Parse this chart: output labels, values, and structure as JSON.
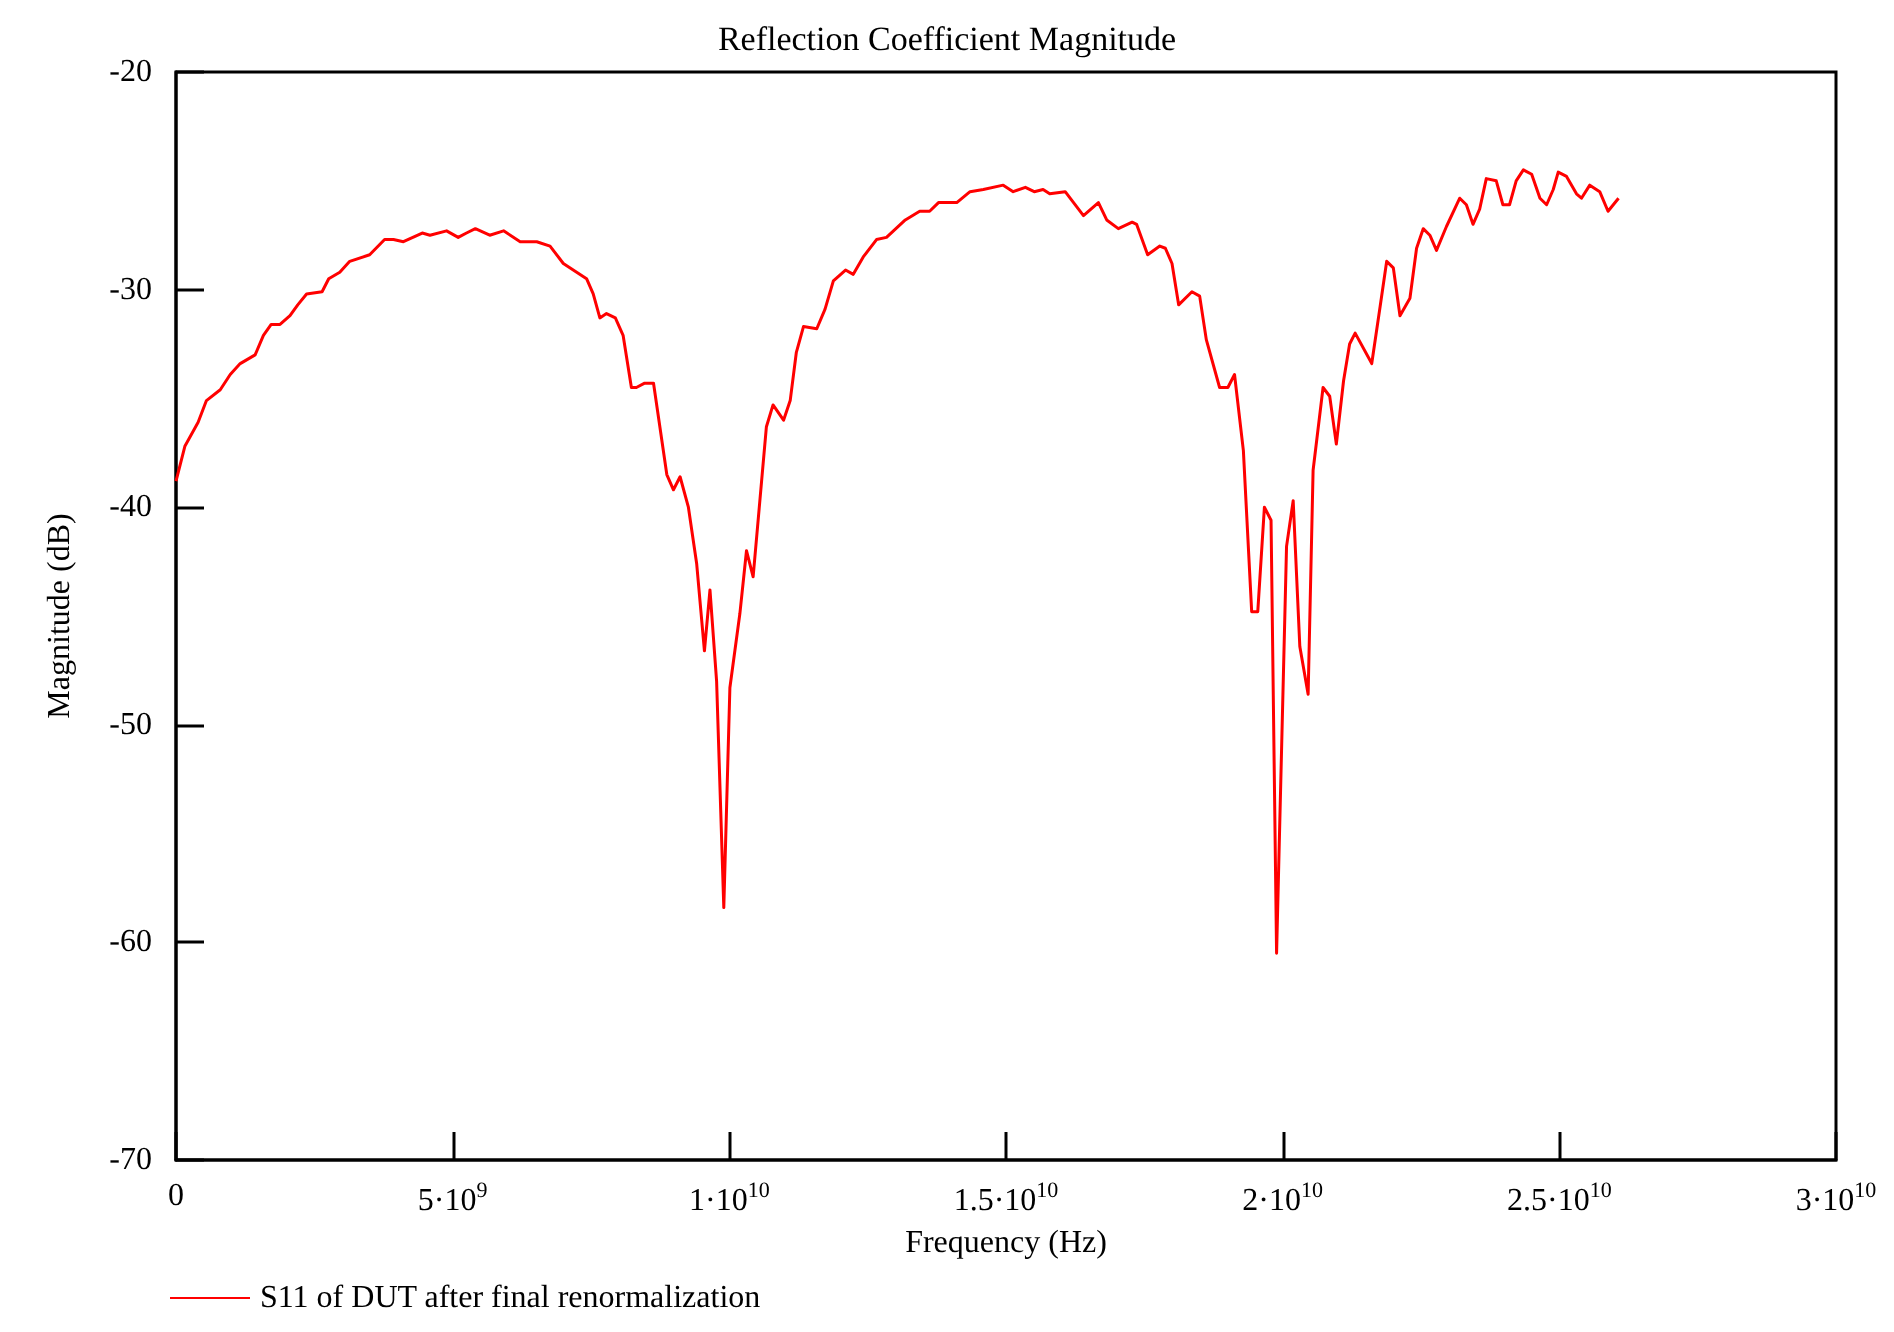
{
  "chart_data": {
    "type": "line",
    "title": "Reflection Coefficient Magnitude",
    "xlabel": "Frequency (Hz)",
    "ylabel": "Magnitude (dB)",
    "xlim": [
      0,
      30000000000.0
    ],
    "xticks": [
      0,
      {
        "value": 5000000000.0,
        "label": "5·10$^{9}$"
      },
      {
        "value": 10000000000.0,
        "label": "1·10$^{10}$"
      },
      {
        "value": 15000000000.0,
        "label": "1.5·10$^{10}$"
      },
      {
        "value": 20000000000.0,
        "label": "2·10$^{10}$"
      },
      {
        "value": 25000000000.0,
        "label": "2.5·10$^{10}$"
      },
      {
        "value": 30000000000.0,
        "label": "3·10$^{10}$"
      }
    ],
    "ylim": [
      -70,
      -20
    ],
    "yticks": [
      -70,
      -60,
      -50,
      -40,
      -30,
      -20
    ],
    "grid": false,
    "legend": "bottom left",
    "marker": "none",
    "line_style": "solid",
    "series": [
      {
        "name": "S11 of DUT after final renormalization",
        "color": "#ff0000",
        "x": [
          0,
          160000000.0,
          400000000.0,
          550000000.0,
          800000000.0,
          980000000.0,
          1160000000.0,
          1430000000.0,
          1580000000.0,
          1720000000.0,
          1880000000.0,
          2060000000.0,
          2200000000.0,
          2360000000.0,
          2640000000.0,
          2760000000.0,
          2960000000.0,
          3140000000.0,
          3500000000.0,
          3770000000.0,
          3930000000.0,
          4110000000.0,
          4450000000.0,
          4590000000.0,
          4890000000.0,
          5100000000.0,
          5250000000.0,
          5410000000.0,
          5670000000.0,
          5920000000.0,
          6220000000.0,
          6520000000.0,
          6760000000.0,
          7000000000.0,
          7420000000.0,
          7540000000.0,
          7660000000.0,
          7780000000.0,
          7940000000.0,
          8080000000.0,
          8230000000.0,
          8320000000.0,
          8470000000.0,
          8630000000.0,
          8870000000.0,
          8990000000.0,
          9110000000.0,
          9260000000.0,
          9410000000.0,
          9550000000.0,
          9650000000.0,
          9770000000.0,
          9900000000.0,
          10010000000.0,
          10190000000.0,
          10310000000.0,
          10430000000.0,
          10670000000.0,
          10790000000.0,
          10980000000.0,
          11100000000.0,
          11210000000.0,
          11340000000.0,
          11580000000.0,
          11730000000.0,
          11880000000.0,
          12100000000.0,
          12240000000.0,
          12420000000.0,
          12660000000.0,
          12840000000.0,
          13180000000.0,
          13440000000.0,
          13620000000.0,
          13780000000.0,
          14110000000.0,
          14350000000.0,
          14590000000.0,
          14950000000.0,
          15130000000.0,
          15350000000.0,
          15510000000.0,
          15670000000.0,
          15790000000.0,
          16070000000.0,
          16400000000.0,
          16670000000.0,
          16820000000.0,
          17030000000.0,
          17280000000.0,
          17360000000.0,
          17560000000.0,
          17780000000.0,
          17880000000.0,
          18000000000.0,
          18120000000.0,
          18360000000.0,
          18500000000.0,
          18620000000.0,
          18860000000.0,
          19010000000.0,
          19130000000.0,
          19290000000.0,
          19440000000.0,
          19550000000.0,
          19670000000.0,
          19790000000.0,
          19890000000.0,
          20070000000.0,
          20190000000.0,
          20310000000.0,
          20460000000.0,
          20550000000.0,
          20730000000.0,
          20850000000.0,
          20970000000.0,
          21100000000.0,
          21210000000.0,
          21310000000.0,
          21610000000.0,
          21760000000.0,
          21880000000.0,
          22000000000.0,
          22120000000.0,
          22300000000.0,
          22420000000.0,
          22540000000.0,
          22660000000.0,
          22780000000.0,
          22960000000.0,
          23200000000.0,
          23320000000.0,
          23440000000.0,
          23560000000.0,
          23680000000.0,
          23860000000.0,
          23980000000.0,
          24100000000.0,
          24220000000.0,
          24350000000.0,
          24500000000.0,
          24650000000.0,
          24770000000.0,
          24890000000.0,
          24980000000.0,
          25130000000.0,
          25310000000.0,
          25400000000.0,
          25550000000.0,
          25730000000.0,
          25880000000.0,
          26070000000.0
        ],
        "values": [
          -38.8,
          -37.2,
          -36.1,
          -35.1,
          -34.6,
          -33.9,
          -33.4,
          -33.0,
          -32.1,
          -31.6,
          -31.6,
          -31.2,
          -30.7,
          -30.2,
          -30.1,
          -29.5,
          -29.2,
          -28.7,
          -28.4,
          -27.7,
          -27.7,
          -27.8,
          -27.4,
          -27.5,
          -27.3,
          -27.6,
          -27.4,
          -27.2,
          -27.5,
          -27.3,
          -27.8,
          -27.8,
          -28.0,
          -28.8,
          -29.5,
          -30.2,
          -31.3,
          -31.1,
          -31.3,
          -32.1,
          -34.5,
          -34.5,
          -34.3,
          -34.3,
          -38.5,
          -39.2,
          -38.6,
          -40.0,
          -42.6,
          -46.6,
          -43.8,
          -48.0,
          -58.4,
          -48.3,
          -44.9,
          -42.0,
          -43.2,
          -36.3,
          -35.3,
          -36.0,
          -35.1,
          -32.9,
          -31.7,
          -31.8,
          -30.9,
          -29.6,
          -29.1,
          -29.3,
          -28.5,
          -27.7,
          -27.6,
          -26.8,
          -26.4,
          -26.4,
          -26.0,
          -26.0,
          -25.5,
          -25.4,
          -25.2,
          -25.5,
          -25.3,
          -25.5,
          -25.4,
          -25.6,
          -25.5,
          -26.6,
          -26.0,
          -26.8,
          -27.2,
          -26.9,
          -27.0,
          -28.4,
          -28.0,
          -28.1,
          -28.8,
          -30.7,
          -30.1,
          -30.3,
          -32.3,
          -34.5,
          -34.5,
          -33.9,
          -37.4,
          -44.8,
          -44.8,
          -40.0,
          -40.6,
          -60.5,
          -41.8,
          -39.7,
          -46.4,
          -48.6,
          -38.3,
          -34.5,
          -34.9,
          -37.1,
          -34.2,
          -32.5,
          -32.0,
          -33.4,
          -30.8,
          -28.7,
          -29.0,
          -31.2,
          -30.4,
          -28.1,
          -27.2,
          -27.5,
          -28.2,
          -27.1,
          -25.8,
          -26.1,
          -27.0,
          -26.3,
          -24.9,
          -25.0,
          -26.1,
          -26.1,
          -25.0,
          -24.5,
          -24.7,
          -25.8,
          -26.1,
          -25.4,
          -24.6,
          -24.8,
          -25.6,
          -25.8,
          -25.2,
          -25.5,
          -26.4,
          -25.8
        ]
      }
    ]
  }
}
